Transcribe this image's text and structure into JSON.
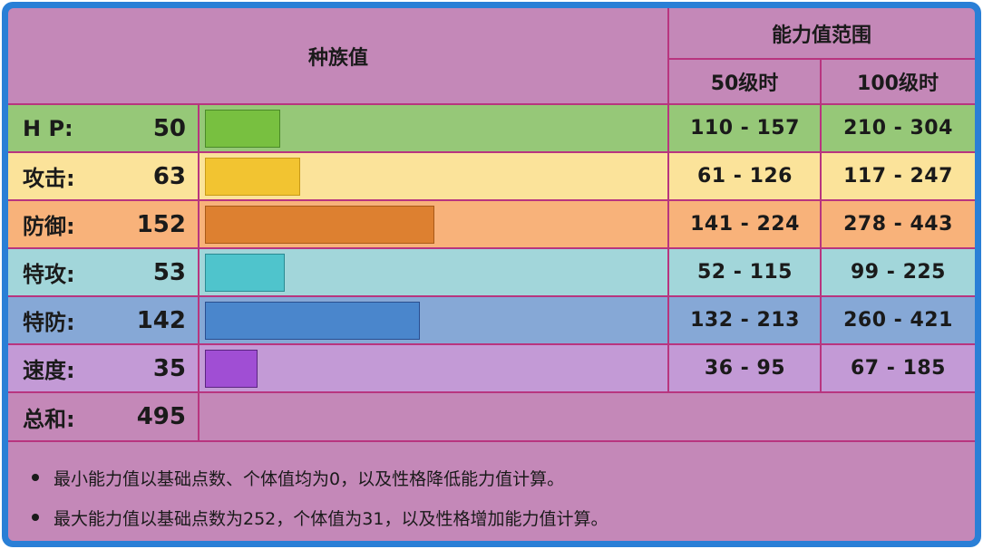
{
  "header": {
    "base_stats": "种族值",
    "stat_range": "能力值范围",
    "level_50": "50级时",
    "level_100": "100级时"
  },
  "stats": [
    {
      "label": "H P:",
      "value": "50",
      "base": 50,
      "range50": "110 - 157",
      "range100": "210 - 304",
      "row_color": "#96c878",
      "bar_color": "#78c040",
      "bar_border": "#4a8a28"
    },
    {
      "label": "攻击:",
      "value": "63",
      "base": 63,
      "range50": "61 - 126",
      "range100": "117 - 247",
      "row_color": "#fbe39a",
      "bar_color": "#f2c431",
      "bar_border": "#c89a18"
    },
    {
      "label": "防御:",
      "value": "152",
      "base": 152,
      "range50": "141 - 224",
      "range100": "278 - 443",
      "row_color": "#f8b27a",
      "bar_color": "#dd8030",
      "bar_border": "#a85a18"
    },
    {
      "label": "特攻:",
      "value": "53",
      "base": 53,
      "range50": "52 - 115",
      "range100": "99 - 225",
      "row_color": "#a2d6da",
      "bar_color": "#4fc4cc",
      "bar_border": "#2a8a92"
    },
    {
      "label": "特防:",
      "value": "142",
      "base": 142,
      "range50": "132 - 213",
      "range100": "260 - 421",
      "row_color": "#86a8d6",
      "bar_color": "#4a86cc",
      "bar_border": "#2a4e90"
    },
    {
      "label": "速度:",
      "value": "35",
      "base": 35,
      "range50": "36 - 95",
      "range100": "67 - 185",
      "row_color": "#c39ad6",
      "bar_color": "#a04ed4",
      "bar_border": "#5a2480"
    }
  ],
  "total": {
    "label": "总和:",
    "value": "495"
  },
  "notes": [
    "最小能力值以基础点数、个体值均为0，以及性格降低能力值计算。",
    "最大能力值以基础点数为252，个体值为31，以及性格增加能力值计算。"
  ],
  "colors": {
    "frame": "#2a7fd6",
    "grid_line": "#b8357f",
    "header_bg": "#c488b8"
  }
}
